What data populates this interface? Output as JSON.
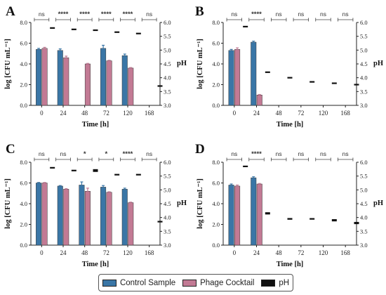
{
  "colors": {
    "control": "#3a76a6",
    "phage": "#c27a94",
    "ph": "#111111"
  },
  "legend": [
    {
      "name": "Control Sample",
      "color": "#3a76a6"
    },
    {
      "name": "Phage Cocktail",
      "color": "#c27a94"
    },
    {
      "name": "pH",
      "color": "#111111"
    }
  ],
  "chart_data": [
    {
      "type": "bar",
      "panel": "A",
      "categories": [
        "0",
        "24",
        "48",
        "72",
        "120",
        "168"
      ],
      "xlabel": "Time [h]",
      "ylabel": "log [CFU mL⁻¹]",
      "ylabel2": "pH",
      "ylim": [
        0,
        8
      ],
      "yticks": [
        "0.0",
        "2.0",
        "4.0",
        "6.0",
        "8.0"
      ],
      "y2lim": [
        3.0,
        6.0
      ],
      "y2ticks": [
        "3.0",
        "3.5",
        "4.0",
        "4.5",
        "5.0",
        "5.5",
        "6.0"
      ],
      "series": [
        {
          "name": "Control Sample",
          "values": [
            5.4,
            5.3,
            null,
            5.5,
            4.8,
            null
          ],
          "errors": [
            0.1,
            0.15,
            null,
            0.3,
            0.15,
            null
          ]
        },
        {
          "name": "Phage Cocktail",
          "values": [
            5.5,
            4.6,
            4.0,
            4.3,
            3.6,
            null
          ],
          "errors": [
            0.1,
            0.15,
            0.05,
            0.05,
            0.05,
            null
          ]
        },
        {
          "name": "pH",
          "values": [
            5.8,
            5.75,
            5.72,
            5.65,
            5.6,
            3.7
          ],
          "errors": [
            0.02,
            0.02,
            0.02,
            0.02,
            0.02,
            0.02
          ]
        }
      ],
      "significance": [
        "ns",
        "****",
        "****",
        "****",
        "****",
        "ns"
      ]
    },
    {
      "type": "bar",
      "panel": "B",
      "categories": [
        "0",
        "24",
        "48",
        "72",
        "120",
        "168"
      ],
      "xlabel": "Time [h]",
      "ylabel": "log [CFU mL⁻¹]",
      "ylabel2": "pH",
      "ylim": [
        0,
        8
      ],
      "yticks": [
        "0.0",
        "2.0",
        "4.0",
        "6.0",
        "8.0"
      ],
      "y2lim": [
        3.0,
        6.0
      ],
      "y2ticks": [
        "3.0",
        "3.5",
        "4.0",
        "4.5",
        "5.0",
        "5.5",
        "6.0"
      ],
      "series": [
        {
          "name": "Control Sample",
          "values": [
            5.3,
            6.1,
            null,
            null,
            null,
            null
          ],
          "errors": [
            0.1,
            0.1,
            null,
            null,
            null,
            null
          ]
        },
        {
          "name": "Phage Cocktail",
          "values": [
            5.4,
            1.0,
            null,
            null,
            null,
            null
          ],
          "errors": [
            0.15,
            0.05,
            null,
            null,
            null,
            null
          ]
        },
        {
          "name": "pH",
          "values": [
            5.85,
            4.2,
            4.0,
            3.85,
            3.8,
            3.75
          ],
          "errors": [
            0.02,
            0.02,
            0.02,
            0.02,
            0.02,
            0.02
          ]
        }
      ],
      "significance": [
        "ns",
        "****",
        "ns",
        "ns",
        "ns",
        "ns"
      ]
    },
    {
      "type": "bar",
      "panel": "C",
      "categories": [
        "0",
        "24",
        "48",
        "72",
        "120",
        "168"
      ],
      "xlabel": "Time [h]",
      "ylabel": "log [CFU mL⁻¹]",
      "ylabel2": "pH",
      "ylim": [
        0,
        8
      ],
      "yticks": [
        "0.0",
        "2.0",
        "4.0",
        "6.0",
        "8.0"
      ],
      "y2lim": [
        3.0,
        6.0
      ],
      "y2ticks": [
        "3.0",
        "3.5",
        "4.0",
        "4.5",
        "5.0",
        "5.5",
        "6.0"
      ],
      "series": [
        {
          "name": "Control Sample",
          "values": [
            6.0,
            5.7,
            5.8,
            5.6,
            5.4,
            null
          ],
          "errors": [
            0.05,
            0.05,
            0.3,
            0.15,
            0.1,
            null
          ]
        },
        {
          "name": "Phage Cocktail",
          "values": [
            6.0,
            5.4,
            5.2,
            5.1,
            4.1,
            null
          ],
          "errors": [
            0.05,
            0.05,
            0.3,
            0.05,
            0.05,
            null
          ]
        },
        {
          "name": "pH",
          "values": [
            5.8,
            5.7,
            5.7,
            5.55,
            5.55,
            3.85
          ],
          "errors": [
            0.02,
            0.02,
            0.05,
            0.02,
            0.02,
            0.02
          ]
        }
      ],
      "significance": [
        "ns",
        "ns",
        "*",
        "*",
        "****",
        "ns"
      ]
    },
    {
      "type": "bar",
      "panel": "D",
      "categories": [
        "0",
        "24",
        "48",
        "72",
        "120",
        "168"
      ],
      "xlabel": "Time [h]",
      "ylabel": "log [CFU mL⁻¹]",
      "ylabel2": "pH",
      "ylim": [
        0,
        8
      ],
      "yticks": [
        "0.0",
        "2.0",
        "4.0",
        "6.0",
        "8.0"
      ],
      "y2lim": [
        3.0,
        6.0
      ],
      "y2ticks": [
        "3.0",
        "3.5",
        "4.0",
        "4.5",
        "5.0",
        "5.5",
        "6.0"
      ],
      "series": [
        {
          "name": "Control Sample",
          "values": [
            5.8,
            6.5,
            null,
            null,
            null,
            null
          ],
          "errors": [
            0.1,
            0.1,
            null,
            null,
            null,
            null
          ]
        },
        {
          "name": "Phage Cocktail",
          "values": [
            5.7,
            5.9,
            null,
            null,
            null,
            null
          ],
          "errors": [
            0.1,
            0.05,
            null,
            null,
            null,
            null
          ]
        },
        {
          "name": "pH",
          "values": [
            5.85,
            4.15,
            3.95,
            3.95,
            3.9,
            3.8
          ],
          "errors": [
            0.02,
            0.04,
            0.03,
            0.02,
            0.04,
            0.04
          ]
        }
      ],
      "significance": [
        "ns",
        "****",
        "ns",
        "ns",
        "ns",
        "ns"
      ]
    }
  ]
}
